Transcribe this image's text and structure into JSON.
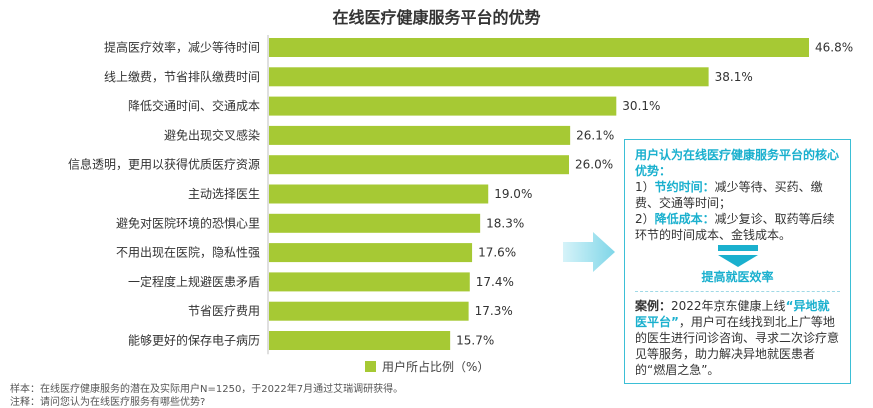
{
  "title": "在线医疗健康服务平台的优势",
  "chart_data": {
    "type": "bar",
    "orientation": "horizontal",
    "categories": [
      "提高医疗效率，减少等待时间",
      "线上缴费，节省排队缴费时间",
      "降低交通时间、交通成本",
      "避免出现交叉感染",
      "信息透明，更用以获得优质医疗资源",
      "主动选择医生",
      "避免对医院环境的恐惧心里",
      "不用出现在医院，隐私性强",
      "一定程度上规避医患矛盾",
      "节省医疗费用",
      "能够更好的保存电子病历"
    ],
    "series": [
      {
        "name": "用户所占比例（%）",
        "values": [
          46.8,
          38.1,
          30.1,
          26.1,
          26.0,
          19.0,
          18.3,
          17.6,
          17.4,
          17.3,
          15.7
        ],
        "labels": [
          "46.8%",
          "38.1%",
          "30.1%",
          "26.1%",
          "26.0%",
          "19.0%",
          "18.3%",
          "17.6%",
          "17.4%",
          "17.3%",
          "15.7%"
        ]
      }
    ],
    "xlim": [
      0,
      46.8
    ],
    "grid": false,
    "legend_position": "bottom",
    "bar_color": "#a6c934"
  },
  "legend_label": "用户所占比例（%）",
  "callout": {
    "heading": "用户认为在线医疗健康服务平台的核心优势：",
    "point1_num": "1）",
    "point1_title": "节约时间：",
    "point1_text": "减少等待、买药、缴费、交通等时间；",
    "point2_num": "2）",
    "point2_title": "降低成本：",
    "point2_text": "减少复诊、取药等后续环节的时间成本、金钱成本。",
    "result": "提高就医效率",
    "case_label": "案例：",
    "case_prefix": "2022年京东健康上线",
    "case_highlight": "“异地就医平台”",
    "case_text": "，用户可在线找到北上广等地的医生进行问诊咨询、寻求二次诊疗意见等服务，助力解决异地就医患者的“燃眉之急”。",
    "accent_color": "#1ab0ce"
  },
  "footnotes": {
    "sample": "样本：在线医疗健康服务的潜在及实际用户N=1250，于2022年7月通过艾瑞调研获得。",
    "note": "注释：请问您认为在线医疗服务有哪些优势?"
  }
}
